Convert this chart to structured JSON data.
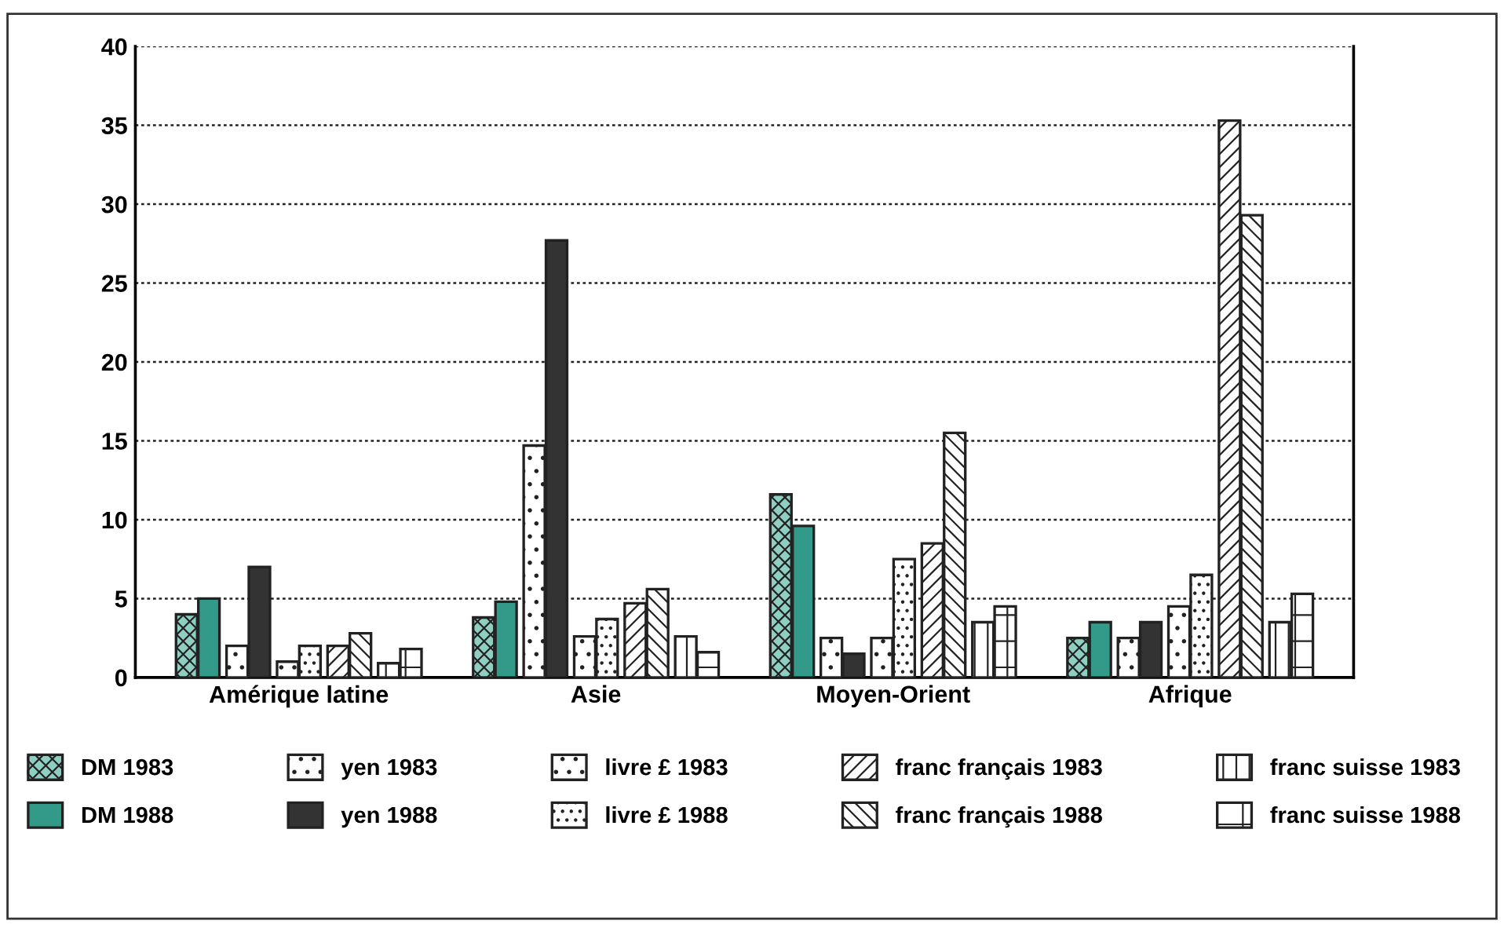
{
  "chart_data": {
    "type": "bar",
    "categories": [
      "Amérique latine",
      "Asie",
      "Moyen-Orient",
      "Afrique"
    ],
    "series": [
      {
        "name": "DM 1983",
        "color": "#8fcfc2",
        "values": [
          4,
          3.8,
          11.6,
          2.5
        ]
      },
      {
        "name": "DM 1988",
        "color": "#339988",
        "values": [
          5,
          4.8,
          9.6,
          3.5
        ]
      },
      {
        "name": "yen 1983",
        "color": "#ffffff",
        "values": [
          2,
          14.7,
          2.5,
          2.5
        ]
      },
      {
        "name": "yen 1988",
        "color": "#333333",
        "values": [
          7,
          27.7,
          1.5,
          3.5
        ]
      },
      {
        "name": "livre £ 1983",
        "color": "#ffffff",
        "values": [
          1,
          2.6,
          2.5,
          4.5
        ]
      },
      {
        "name": "livre £ 1988",
        "color": "#ffffff",
        "values": [
          2,
          3.7,
          7.5,
          6.5
        ]
      },
      {
        "name": "franc français 1983",
        "color": "#ffffff",
        "values": [
          2,
          4.7,
          8.5,
          35.3
        ]
      },
      {
        "name": "franc français 1988",
        "color": "#ffffff",
        "values": [
          2.8,
          5.6,
          15.5,
          29.3
        ]
      },
      {
        "name": "franc suisse 1983",
        "color": "#ffffff",
        "values": [
          0.9,
          2.6,
          3.5,
          3.5
        ]
      },
      {
        "name": "franc suisse 1988",
        "color": "#ffffff",
        "values": [
          1.8,
          1.6,
          4.5,
          5.3
        ]
      }
    ],
    "ylim": [
      0,
      40
    ],
    "yticks": [
      0,
      5,
      10,
      15,
      20,
      25,
      30,
      35,
      40
    ],
    "grid": "y",
    "legend": "bottom"
  }
}
